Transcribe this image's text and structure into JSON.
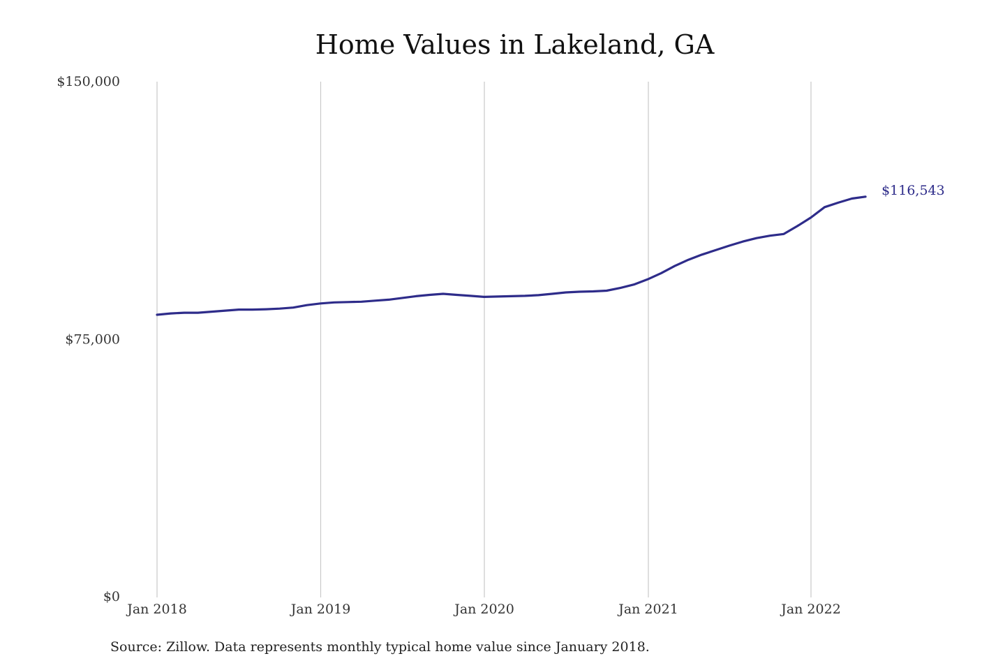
{
  "chart_data": {
    "type": "line",
    "title": "Home Values in Lakeland, GA",
    "xlabel": "",
    "ylabel": "",
    "x_tick_labels": [
      "Jan 2018",
      "Jan 2019",
      "Jan 2020",
      "Jan 2021",
      "Jan 2022"
    ],
    "y_tick_labels": [
      "$150,000",
      "$75,000",
      "$0"
    ],
    "y_ticks": [
      150000,
      75000,
      0
    ],
    "ylim": [
      0,
      150000
    ],
    "xlim": [
      "2018-01",
      "2022-05"
    ],
    "grid": "vertical",
    "legend": "none",
    "line_color": "#2e2c8a",
    "end_label": "$116,543",
    "series": [
      {
        "x": [
          "2018-01",
          "2018-02",
          "2018-03",
          "2018-04",
          "2018-05",
          "2018-06",
          "2018-07",
          "2018-08",
          "2018-09",
          "2018-10",
          "2018-11",
          "2018-12",
          "2019-01",
          "2019-02",
          "2019-03",
          "2019-04",
          "2019-05",
          "2019-06",
          "2019-07",
          "2019-08",
          "2019-09",
          "2019-10",
          "2019-11",
          "2019-12",
          "2020-01",
          "2020-02",
          "2020-03",
          "2020-04",
          "2020-05",
          "2020-06",
          "2020-07",
          "2020-08",
          "2020-09",
          "2020-10",
          "2020-11",
          "2020-12",
          "2021-01",
          "2021-02",
          "2021-03",
          "2021-04",
          "2021-05",
          "2021-06",
          "2021-07",
          "2021-08",
          "2021-09",
          "2021-10",
          "2021-11",
          "2021-12",
          "2022-01",
          "2022-02",
          "2022-03",
          "2022-04",
          "2022-05"
        ],
        "values": [
          82200,
          82600,
          82800,
          82800,
          83100,
          83400,
          83700,
          83700,
          83800,
          84000,
          84300,
          85000,
          85500,
          85800,
          85900,
          86000,
          86300,
          86600,
          87100,
          87600,
          88000,
          88300,
          88000,
          87700,
          87400,
          87500,
          87600,
          87700,
          87900,
          88300,
          88700,
          88900,
          89000,
          89200,
          90000,
          91000,
          92500,
          94300,
          96400,
          98200,
          99700,
          101000,
          102300,
          103500,
          104500,
          105200,
          105700,
          108000,
          110500,
          113500,
          114800,
          116000,
          116543
        ]
      }
    ]
  },
  "footer": {
    "source": "Source: Zillow. Data represents monthly typical home value since January 2018."
  }
}
